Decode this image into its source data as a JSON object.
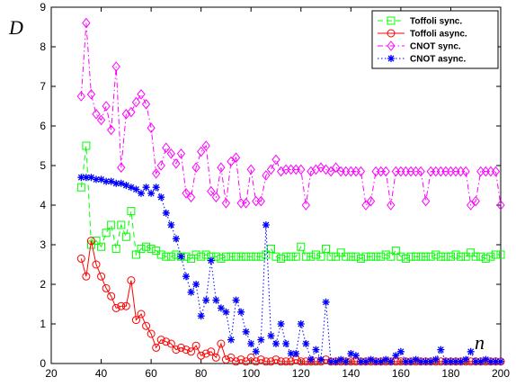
{
  "chart_data": {
    "type": "line",
    "xlabel": "n",
    "ylabel": "D",
    "x": [
      32,
      34,
      36,
      38,
      40,
      42,
      44,
      46,
      48,
      50,
      52,
      54,
      56,
      58,
      60,
      62,
      64,
      66,
      68,
      70,
      72,
      74,
      76,
      78,
      80,
      82,
      84,
      86,
      88,
      90,
      92,
      94,
      96,
      98,
      100,
      102,
      104,
      106,
      108,
      110,
      112,
      114,
      116,
      118,
      120,
      122,
      124,
      126,
      128,
      130,
      132,
      134,
      136,
      138,
      140,
      142,
      144,
      146,
      148,
      150,
      152,
      154,
      156,
      158,
      160,
      162,
      164,
      166,
      168,
      170,
      172,
      174,
      176,
      178,
      180,
      182,
      184,
      186,
      188,
      190,
      192,
      194,
      196,
      198,
      200
    ],
    "series": [
      {
        "name": "Toffoli sync.",
        "color": "#00ff00",
        "marker": "square",
        "linestyle": "dashed",
        "values": [
          4.45,
          5.5,
          3.0,
          3.1,
          2.95,
          3.3,
          3.5,
          2.9,
          3.5,
          3.2,
          3.85,
          2.75,
          2.9,
          2.95,
          2.9,
          2.85,
          2.75,
          2.7,
          2.7,
          2.75,
          2.7,
          2.7,
          2.65,
          2.75,
          2.7,
          2.75,
          2.7,
          2.7,
          2.65,
          2.7,
          2.7,
          2.7,
          2.7,
          2.7,
          2.7,
          2.7,
          2.7,
          2.75,
          2.9,
          2.7,
          2.65,
          2.7,
          2.7,
          2.7,
          2.95,
          2.7,
          2.7,
          2.75,
          2.7,
          2.9,
          2.7,
          2.7,
          2.8,
          2.7,
          2.7,
          2.7,
          2.65,
          2.7,
          2.7,
          2.7,
          2.7,
          2.75,
          2.7,
          2.85,
          2.7,
          2.65,
          2.7,
          2.7,
          2.7,
          2.7,
          2.7,
          2.75,
          2.7,
          2.7,
          2.7,
          2.75,
          2.7,
          2.7,
          2.8,
          2.7,
          2.7,
          2.65,
          2.7,
          2.75,
          2.75
        ]
      },
      {
        "name": "Toffoli async.",
        "color": "#ff0000",
        "marker": "circle",
        "linestyle": "solid",
        "values": [
          2.65,
          2.2,
          3.1,
          2.5,
          2.2,
          1.9,
          1.7,
          1.4,
          1.45,
          1.45,
          2.1,
          1.1,
          1.25,
          0.95,
          0.75,
          0.4,
          0.6,
          0.55,
          0.5,
          0.35,
          0.4,
          0.35,
          0.3,
          0.45,
          0.2,
          0.25,
          0.3,
          0.15,
          0.5,
          0.1,
          0.15,
          0.05,
          0.1,
          0.05,
          0.15,
          0.05,
          0.1,
          0.05,
          0.05,
          0.1,
          0.05,
          0.05,
          0.05,
          0.1,
          0.05,
          0.05,
          0.05,
          0.05,
          0.05,
          0.1,
          0.05,
          0.05,
          0.05,
          0.05,
          0.05,
          0.05,
          0.05,
          0.05,
          0.05,
          0.05,
          0.05,
          0.05,
          0.05,
          0.05,
          0.05,
          0.05,
          0.05,
          0.05,
          0.05,
          0.05,
          0.05,
          0.05,
          0.05,
          0.05,
          0.05,
          0.05,
          0.05,
          0.05,
          0.05,
          0.05,
          0.05,
          0.05,
          0.05,
          0.05,
          0.05
        ]
      },
      {
        "name": "CNOT sync.",
        "color": "#ff00ff",
        "marker": "diamond",
        "linestyle": "dashdot",
        "values": [
          6.75,
          8.6,
          6.8,
          6.3,
          6.15,
          6.5,
          5.9,
          7.5,
          4.95,
          6.3,
          6.35,
          6.6,
          6.8,
          6.55,
          5.95,
          4.8,
          5.0,
          5.45,
          5.3,
          5.05,
          5.3,
          4.3,
          4.2,
          4.95,
          5.35,
          5.5,
          4.35,
          4.2,
          4.95,
          4.05,
          5.1,
          5.2,
          4.05,
          4.05,
          4.9,
          4.1,
          4.1,
          4.75,
          4.9,
          5.15,
          4.85,
          4.9,
          4.9,
          4.9,
          4.9,
          4.0,
          4.85,
          4.9,
          4.95,
          4.9,
          4.85,
          4.95,
          4.85,
          4.85,
          4.85,
          4.85,
          4.85,
          4.0,
          4.1,
          4.85,
          4.85,
          4.85,
          4.0,
          4.85,
          4.85,
          4.85,
          4.85,
          4.85,
          4.85,
          4.1,
          4.85,
          4.85,
          4.85,
          4.85,
          4.85,
          4.85,
          4.85,
          4.85,
          4.0,
          4.1,
          4.85,
          4.85,
          4.85,
          4.85,
          4.0
        ]
      },
      {
        "name": "CNOT async.",
        "color": "#0000ff",
        "marker": "asterisk",
        "linestyle": "dotted",
        "values": [
          4.7,
          4.7,
          4.7,
          4.65,
          4.65,
          4.6,
          4.6,
          4.55,
          4.55,
          4.5,
          4.45,
          4.4,
          4.3,
          4.45,
          4.3,
          4.45,
          4.2,
          3.8,
          3.5,
          3.15,
          2.7,
          2.2,
          1.8,
          2.0,
          1.2,
          1.6,
          2.6,
          1.6,
          1.4,
          1.3,
          0.6,
          1.6,
          1.3,
          0.8,
          0.5,
          0.3,
          0.6,
          3.5,
          0.7,
          0.5,
          1.0,
          0.5,
          0.25,
          0.25,
          1.0,
          0.5,
          0.1,
          0.35,
          0.1,
          1.55,
          0.05,
          0.05,
          0.1,
          0.05,
          0.25,
          0.2,
          0.05,
          0.05,
          0.1,
          0.05,
          0.05,
          0.1,
          0.05,
          0.2,
          0.3,
          0.05,
          0.05,
          0.1,
          0.05,
          0.05,
          0.05,
          0.1,
          0.35,
          0.05,
          0.05,
          0.05,
          0.05,
          0.1,
          0.3,
          0.05,
          0.05,
          0.1,
          0.05,
          0.05,
          0.05
        ]
      }
    ],
    "xlim": [
      20,
      200
    ],
    "xticks": [
      20,
      40,
      60,
      80,
      100,
      120,
      140,
      160,
      180,
      200
    ],
    "ylim": [
      0,
      9
    ],
    "yticks": [
      0,
      1,
      2,
      3,
      4,
      5,
      6,
      7,
      8,
      9
    ],
    "legend": "upper right"
  }
}
